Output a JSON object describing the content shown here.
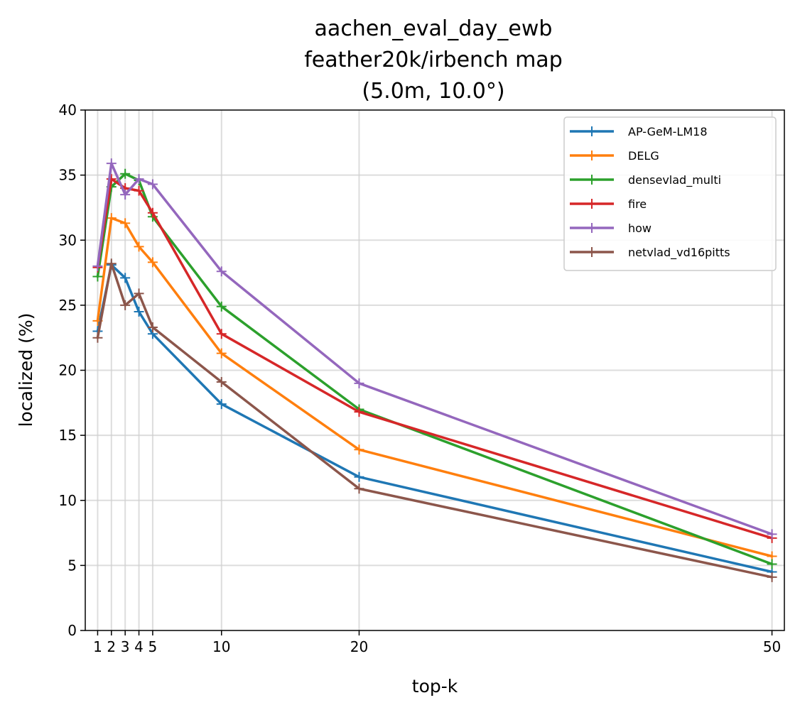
{
  "chart_data": {
    "type": "line",
    "title_lines": [
      "aachen_eval_day_ewb",
      "feather20k/irbench map",
      "(5.0m, 10.0°)"
    ],
    "xlabel": "top-k",
    "ylabel": "localized (%)",
    "x": [
      1,
      2,
      3,
      4,
      5,
      10,
      20,
      50
    ],
    "xticks": [
      1,
      2,
      3,
      4,
      5,
      10,
      20,
      50
    ],
    "xticklabels": [
      "1",
      "2",
      "3",
      "4",
      "5",
      "10",
      "20",
      "50"
    ],
    "xlim": [
      0.1,
      50.9
    ],
    "ylim": [
      0,
      40
    ],
    "yticks": [
      0,
      5,
      10,
      15,
      20,
      25,
      30,
      35,
      40
    ],
    "yticklabels": [
      "0",
      "5",
      "10",
      "15",
      "20",
      "25",
      "30",
      "35",
      "40"
    ],
    "grid": true,
    "legend_position": "upper right",
    "marker": "+",
    "series": [
      {
        "name": "AP-GeM-LM18",
        "color": "#1f77b4",
        "values": [
          23.0,
          28.1,
          27.1,
          24.5,
          22.8,
          17.4,
          11.8,
          4.5
        ]
      },
      {
        "name": "DELG",
        "color": "#ff7f0e",
        "values": [
          23.8,
          31.7,
          31.3,
          29.5,
          28.3,
          21.3,
          13.9,
          5.7
        ]
      },
      {
        "name": "densevlad_multi",
        "color": "#2ca02c",
        "values": [
          27.2,
          34.1,
          35.1,
          34.6,
          31.8,
          24.9,
          17.0,
          5.1
        ]
      },
      {
        "name": "fire",
        "color": "#d62728",
        "values": [
          27.9,
          34.7,
          34.0,
          33.8,
          32.1,
          22.8,
          16.8,
          7.1
        ]
      },
      {
        "name": "how",
        "color": "#9467bd",
        "values": [
          28.0,
          35.9,
          33.5,
          34.7,
          34.3,
          27.6,
          19.0,
          7.4
        ]
      },
      {
        "name": "netvlad_vd16pitts",
        "color": "#8c564b",
        "values": [
          22.5,
          28.2,
          25.0,
          25.9,
          23.3,
          19.1,
          10.9,
          4.1
        ]
      }
    ]
  }
}
